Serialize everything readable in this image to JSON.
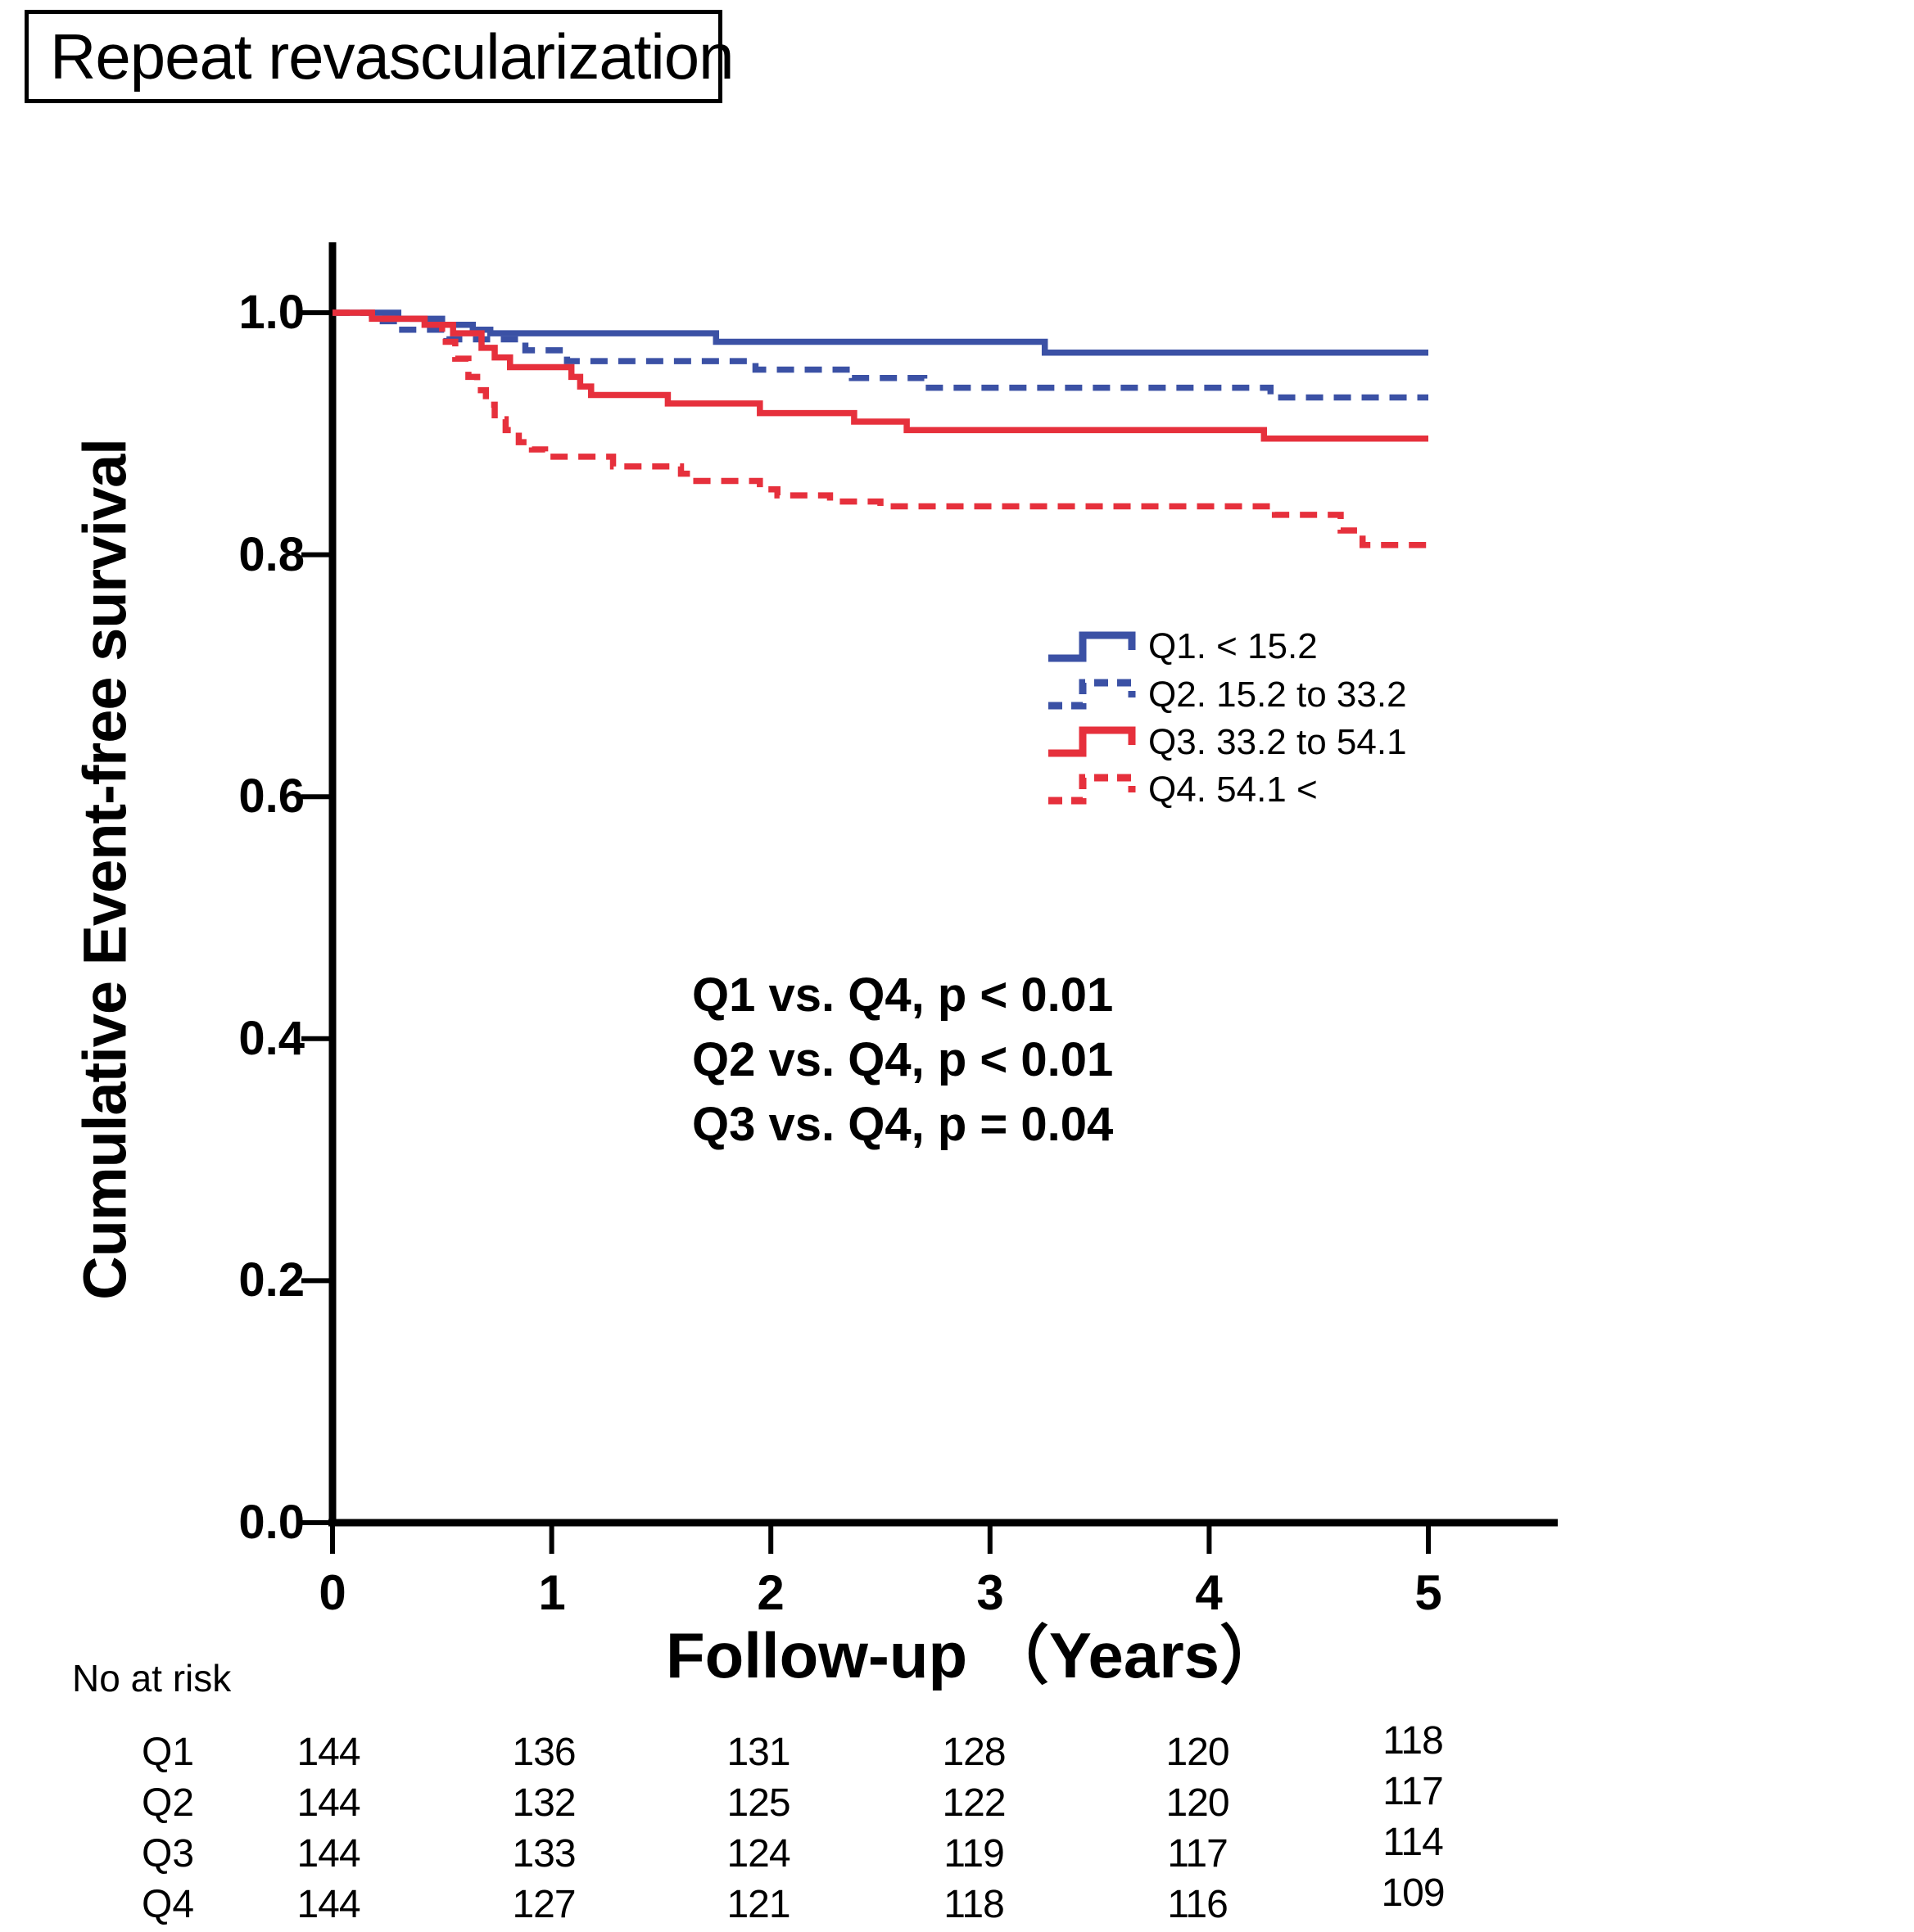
{
  "title": "Repeat revascularization",
  "chart_data": {
    "type": "line",
    "subtype": "kaplan-meier-step",
    "title": "Repeat revascularization",
    "xlabel": "Follow-up （Years）",
    "ylabel": "Cumulative Event-free survival",
    "xlim": [
      0,
      5.55
    ],
    "ylim": [
      0,
      1.05
    ],
    "xticks": [
      "0",
      "1",
      "2",
      "3",
      "4",
      "5"
    ],
    "yticks": [
      "0.0",
      "0.2",
      "0.4",
      "0.6",
      "0.8",
      "1.0"
    ],
    "grid": false,
    "legend_position": "middle-right",
    "colors": {
      "blue": "#3b51a5",
      "red": "#e6303c",
      "axis": "#000000"
    },
    "series": [
      {
        "name": "Q1. < 15.2",
        "color": "#3b51a5",
        "style": "solid",
        "points": [
          [
            0,
            1.0
          ],
          [
            0.3,
            0.995
          ],
          [
            0.5,
            0.99
          ],
          [
            0.64,
            0.986
          ],
          [
            0.72,
            0.983
          ],
          [
            1.75,
            0.976
          ],
          [
            3.25,
            0.967
          ],
          [
            5,
            0.967
          ]
        ]
      },
      {
        "name": "Q2. 15.2 to 33.2",
        "color": "#3b51a5",
        "style": "dashed",
        "points": [
          [
            0,
            1.0
          ],
          [
            0.18,
            0.993
          ],
          [
            0.3,
            0.986
          ],
          [
            0.52,
            0.978
          ],
          [
            0.88,
            0.969
          ],
          [
            1.07,
            0.96
          ],
          [
            1.93,
            0.953
          ],
          [
            2.37,
            0.946
          ],
          [
            2.7,
            0.938
          ],
          [
            4.28,
            0.93
          ],
          [
            5,
            0.93
          ]
        ]
      },
      {
        "name": "Q3. 33.2 to 54.1",
        "color": "#e6303c",
        "style": "solid",
        "points": [
          [
            0,
            1.0
          ],
          [
            0.18,
            0.995
          ],
          [
            0.42,
            0.99
          ],
          [
            0.55,
            0.983
          ],
          [
            0.68,
            0.971
          ],
          [
            0.74,
            0.963
          ],
          [
            0.81,
            0.955
          ],
          [
            1.09,
            0.947
          ],
          [
            1.13,
            0.939
          ],
          [
            1.18,
            0.932
          ],
          [
            1.53,
            0.925
          ],
          [
            1.95,
            0.917
          ],
          [
            2.38,
            0.91
          ],
          [
            2.62,
            0.903
          ],
          [
            4.25,
            0.896
          ],
          [
            5,
            0.896
          ]
        ]
      },
      {
        "name": "Q4. 54.1 <",
        "color": "#e6303c",
        "style": "dashed",
        "points": [
          [
            0,
            1.0
          ],
          [
            0.18,
            0.995
          ],
          [
            0.42,
            0.99
          ],
          [
            0.5,
            0.976
          ],
          [
            0.56,
            0.962
          ],
          [
            0.62,
            0.947
          ],
          [
            0.66,
            0.936
          ],
          [
            0.7,
            0.924
          ],
          [
            0.74,
            0.912
          ],
          [
            0.79,
            0.903
          ],
          [
            0.85,
            0.893
          ],
          [
            0.91,
            0.887
          ],
          [
            0.97,
            0.881
          ],
          [
            1.28,
            0.873
          ],
          [
            1.59,
            0.867
          ],
          [
            1.66,
            0.861
          ],
          [
            1.95,
            0.854
          ],
          [
            2.03,
            0.849
          ],
          [
            2.27,
            0.844
          ],
          [
            2.5,
            0.84
          ],
          [
            4.3,
            0.833
          ],
          [
            4.6,
            0.82
          ],
          [
            4.7,
            0.808
          ],
          [
            5,
            0.805
          ]
        ]
      }
    ],
    "annotations": [
      "Q1 vs. Q4, p < 0.01",
      "Q2 vs. Q4, p < 0.01",
      "Q3 vs. Q4, p = 0.04"
    ]
  },
  "risk_table": {
    "label": "No at risk",
    "rows": [
      {
        "label": "Q1",
        "values": [
          "144",
          "136",
          "131",
          "128",
          "120",
          "118"
        ]
      },
      {
        "label": "Q2",
        "values": [
          "144",
          "132",
          "125",
          "122",
          "120",
          "117"
        ]
      },
      {
        "label": "Q3",
        "values": [
          "144",
          "133",
          "124",
          "119",
          "117",
          "114"
        ]
      },
      {
        "label": "Q4",
        "values": [
          "144",
          "127",
          "121",
          "118",
          "116",
          "109"
        ]
      }
    ]
  }
}
